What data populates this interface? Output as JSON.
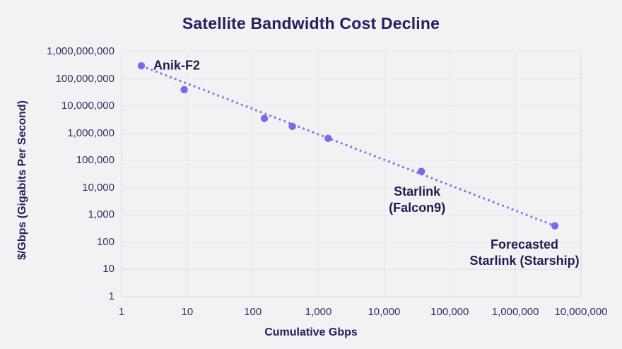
{
  "chart_data": {
    "type": "scatter",
    "title": "Satellite Bandwidth Cost Decline",
    "xlabel": "Cumulative Gbps",
    "ylabel": "$/Gbps (Gigabits Per Second)",
    "x_scale": "log",
    "y_scale": "log",
    "xlim": [
      1,
      10000000
    ],
    "ylim": [
      1,
      1000000000
    ],
    "grid": "on",
    "x_ticks": [
      "1",
      "10",
      "100",
      "1,000",
      "10,000",
      "100,000",
      "1,000,000",
      "10,000,000"
    ],
    "y_ticks": [
      "1",
      "10",
      "100",
      "1,000",
      "10,000",
      "100,000",
      "1,000,000",
      "10,000,000",
      "100,000,000",
      "1,000,000,000"
    ],
    "points": [
      {
        "x": 2,
        "y": 300000000,
        "label": "Anik-F2"
      },
      {
        "x": 9,
        "y": 40000000,
        "label": ""
      },
      {
        "x": 150,
        "y": 3500000,
        "label": ""
      },
      {
        "x": 400,
        "y": 1800000,
        "label": ""
      },
      {
        "x": 1400,
        "y": 650000,
        "label": ""
      },
      {
        "x": 37000,
        "y": 40000,
        "label": "Starlink (Falcon9)"
      },
      {
        "x": 4000000,
        "y": 400,
        "label": "Forecasted Starlink (Starship)"
      }
    ],
    "trendline": {
      "x1": 2,
      "y1": 300000000,
      "x2": 4000000,
      "y2": 400,
      "style": "dotted"
    },
    "annotations": [
      {
        "point": 0,
        "lines": [
          "Anik-F2"
        ],
        "placement": "right"
      },
      {
        "point": 5,
        "lines": [
          "Starlink",
          "(Falcon9)"
        ],
        "placement": "below"
      },
      {
        "point": 6,
        "lines": [
          "Forecasted",
          "Starlink (Starship)"
        ],
        "placement": "below-left"
      }
    ],
    "colors": {
      "point": "#7e68e6",
      "trendline": "#8571ea",
      "text": "#23215a",
      "tick_text": "#302f60",
      "grid": "#e4e4ea",
      "frame": "#d8d8df",
      "background": "#f2f2f5"
    }
  }
}
